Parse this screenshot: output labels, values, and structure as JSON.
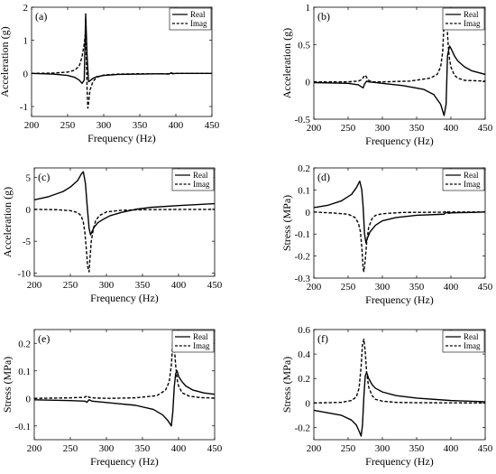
{
  "figure": {
    "legend_real": "Real",
    "legend_imag": "Imag"
  },
  "chart_data": [
    {
      "type": "line",
      "panel_label": "(a)",
      "xlabel": "Frequency (Hz)",
      "ylabel": "Acceleration (g)",
      "xlim": [
        200,
        450
      ],
      "ylim": [
        -1.3,
        2
      ],
      "xticks": [
        200,
        250,
        300,
        350,
        400,
        450
      ],
      "yticks": [
        -1,
        0,
        1,
        2
      ],
      "legend_position": "top-right",
      "series": [
        {
          "name": "Real",
          "style": "solid",
          "x": [
            200,
            230,
            250,
            260,
            266,
            270,
            273,
            275,
            277,
            279,
            281,
            285,
            290,
            300,
            320,
            350,
            380,
            390,
            393,
            396,
            400,
            430,
            450
          ],
          "y": [
            0,
            -0.02,
            -0.06,
            -0.12,
            -0.2,
            -0.3,
            -0.2,
            1.8,
            0.5,
            -0.25,
            -0.22,
            -0.15,
            -0.1,
            -0.06,
            -0.03,
            -0.02,
            -0.01,
            -0.02,
            0.01,
            -0.01,
            0,
            0,
            0
          ]
        },
        {
          "name": "Imag",
          "style": "dashed",
          "x": [
            200,
            230,
            250,
            260,
            266,
            270,
            273,
            275,
            276,
            277,
            278,
            279,
            281,
            285,
            290,
            300,
            320,
            350,
            390,
            393,
            396,
            400,
            430,
            450
          ],
          "y": [
            0,
            0.01,
            0.04,
            0.1,
            0.22,
            0.5,
            0.9,
            1.25,
            0.4,
            -0.5,
            -1.05,
            -0.9,
            -0.5,
            -0.25,
            -0.12,
            -0.05,
            -0.02,
            -0.01,
            -0.01,
            0.02,
            0,
            0,
            0,
            0
          ]
        }
      ]
    },
    {
      "type": "line",
      "panel_label": "(b)",
      "xlabel": "Frequency (Hz)",
      "ylabel": "Acceleration (g)",
      "xlim": [
        200,
        450
      ],
      "ylim": [
        -0.5,
        1
      ],
      "xticks": [
        200,
        250,
        300,
        350,
        400,
        450
      ],
      "yticks": [
        -0.5,
        0,
        0.5,
        1
      ],
      "legend_position": "top-right",
      "series": [
        {
          "name": "Real",
          "style": "solid",
          "x": [
            200,
            250,
            265,
            270,
            272,
            274,
            277,
            280,
            290,
            300,
            330,
            360,
            375,
            385,
            390,
            393,
            395,
            398,
            400,
            405,
            410,
            420,
            430,
            450
          ],
          "y": [
            -0.01,
            -0.02,
            -0.04,
            -0.07,
            -0.08,
            -0.03,
            0.01,
            0,
            -0.01,
            -0.02,
            -0.05,
            -0.1,
            -0.17,
            -0.3,
            -0.45,
            -0.3,
            0.35,
            0.48,
            0.45,
            0.35,
            0.28,
            0.2,
            0.15,
            0.1
          ]
        },
        {
          "name": "Imag",
          "style": "dashed",
          "x": [
            200,
            250,
            265,
            270,
            273,
            275,
            277,
            280,
            285,
            300,
            340,
            370,
            380,
            385,
            388,
            390,
            392,
            394,
            396,
            398,
            400,
            405,
            410,
            420,
            450
          ],
          "y": [
            0,
            0,
            0.01,
            0.03,
            0.07,
            0.09,
            0.06,
            0.02,
            0,
            0,
            0.01,
            0.05,
            0.1,
            0.2,
            0.4,
            0.8,
            0.9,
            0.8,
            0.5,
            0.3,
            0.2,
            0.09,
            0.05,
            0.02,
            0.01
          ]
        }
      ]
    },
    {
      "type": "line",
      "panel_label": "(c)",
      "xlabel": "Frequency (Hz)",
      "ylabel": "Acceleration (g)",
      "xlim": [
        200,
        450
      ],
      "ylim": [
        -10.5,
        6.5
      ],
      "xticks": [
        200,
        250,
        300,
        350,
        400,
        450
      ],
      "yticks": [
        -10,
        -5,
        0,
        5
      ],
      "legend_position": "top-right",
      "series": [
        {
          "name": "Real",
          "style": "solid",
          "x": [
            200,
            220,
            240,
            250,
            260,
            265,
            268,
            271,
            273,
            276,
            278,
            280,
            283,
            288,
            295,
            305,
            320,
            340,
            360,
            400,
            450
          ],
          "y": [
            1.5,
            2,
            2.8,
            3.5,
            4.5,
            5.5,
            5.9,
            4,
            1,
            -3,
            -4,
            -3.5,
            -2.8,
            -2.1,
            -1.6,
            -1,
            -0.5,
            0,
            0.3,
            0.6,
            0.9
          ]
        },
        {
          "name": "Imag",
          "style": "dashed",
          "x": [
            200,
            230,
            250,
            260,
            265,
            268,
            270,
            272,
            274,
            276,
            277,
            279,
            282,
            285,
            290,
            300,
            320,
            350,
            400,
            450
          ],
          "y": [
            0,
            -0.05,
            -0.2,
            -0.5,
            -1,
            -2,
            -3.5,
            -6,
            -9,
            -9.8,
            -8,
            -5,
            -3,
            -1.8,
            -1,
            -0.4,
            -0.15,
            -0.05,
            -0.01,
            0
          ]
        }
      ]
    },
    {
      "type": "line",
      "panel_label": "(d)",
      "xlabel": "Frequency (Hz)",
      "ylabel": "Stress (MPa)",
      "xlim": [
        200,
        450
      ],
      "ylim": [
        -0.3,
        0.2
      ],
      "xticks": [
        200,
        250,
        300,
        350,
        400,
        450
      ],
      "yticks": [
        -0.3,
        -0.2,
        -0.1,
        0,
        0.1,
        0.2
      ],
      "legend_position": "top-right",
      "series": [
        {
          "name": "Real",
          "style": "solid",
          "x": [
            200,
            220,
            240,
            255,
            262,
            267,
            270,
            272,
            274,
            276,
            278,
            282,
            290,
            300,
            320,
            350,
            390,
            393,
            397,
            400,
            430,
            450
          ],
          "y": [
            0.02,
            0.03,
            0.05,
            0.08,
            0.11,
            0.14,
            0.1,
            0.02,
            -0.1,
            -0.14,
            -0.12,
            -0.09,
            -0.06,
            -0.04,
            -0.025,
            -0.015,
            -0.01,
            -0.002,
            -0.006,
            -0.004,
            -0.002,
            0
          ]
        },
        {
          "name": "Imag",
          "style": "dashed",
          "x": [
            200,
            230,
            250,
            260,
            265,
            268,
            270,
            272,
            273,
            275,
            277,
            280,
            285,
            290,
            300,
            330,
            390,
            393,
            397,
            400,
            450
          ],
          "y": [
            0,
            -0.005,
            -0.01,
            -0.025,
            -0.05,
            -0.09,
            -0.16,
            -0.26,
            -0.27,
            -0.22,
            -0.14,
            -0.07,
            -0.03,
            -0.015,
            -0.008,
            -0.002,
            -0.001,
            0.004,
            0,
            0,
            0
          ]
        }
      ]
    },
    {
      "type": "line",
      "panel_label": "(e)",
      "xlabel": "Frequency (Hz)",
      "ylabel": "Stress (MPa)",
      "xlim": [
        200,
        450
      ],
      "ylim": [
        -0.15,
        0.25
      ],
      "xticks": [
        200,
        250,
        300,
        350,
        400,
        450
      ],
      "yticks": [
        -0.1,
        0,
        0.1,
        0.2
      ],
      "legend_position": "top-right",
      "series": [
        {
          "name": "Real",
          "style": "solid",
          "x": [
            200,
            250,
            270,
            273,
            276,
            280,
            300,
            340,
            365,
            378,
            385,
            390,
            392,
            394,
            396,
            398,
            400,
            405,
            410,
            420,
            435,
            450
          ],
          "y": [
            -0.005,
            -0.008,
            -0.01,
            -0.014,
            -0.005,
            -0.01,
            -0.015,
            -0.025,
            -0.04,
            -0.06,
            -0.08,
            -0.1,
            -0.05,
            0.04,
            0.09,
            0.1,
            0.08,
            0.06,
            0.045,
            0.03,
            0.02,
            0.015
          ]
        },
        {
          "name": "Imag",
          "style": "dashed",
          "x": [
            200,
            250,
            270,
            273,
            276,
            280,
            300,
            340,
            370,
            382,
            387,
            390,
            392,
            394,
            396,
            398,
            400,
            405,
            415,
            430,
            450
          ],
          "y": [
            0,
            0.002,
            0.004,
            0.01,
            0.004,
            0.002,
            0,
            0.002,
            0.01,
            0.03,
            0.06,
            0.12,
            0.2,
            0.19,
            0.12,
            0.07,
            0.045,
            0.02,
            0.008,
            0.003,
            0.001
          ]
        }
      ]
    },
    {
      "type": "line",
      "panel_label": "(f)",
      "xlabel": "Frequency (Hz)",
      "ylabel": "Stress (MPa)",
      "xlim": [
        200,
        450
      ],
      "ylim": [
        -0.3,
        0.6
      ],
      "xticks": [
        200,
        250,
        300,
        350,
        400,
        450
      ],
      "yticks": [
        -0.2,
        0,
        0.2,
        0.4,
        0.6
      ],
      "legend_position": "top-right",
      "series": [
        {
          "name": "Real",
          "style": "solid",
          "x": [
            200,
            220,
            240,
            255,
            262,
            266,
            269,
            271,
            273,
            275,
            277,
            280,
            285,
            290,
            300,
            320,
            350,
            400,
            450
          ],
          "y": [
            -0.06,
            -0.08,
            -0.1,
            -0.14,
            -0.18,
            -0.23,
            -0.27,
            -0.18,
            0.05,
            0.22,
            0.25,
            0.2,
            0.15,
            0.12,
            0.09,
            0.06,
            0.04,
            0.02,
            0.01
          ]
        },
        {
          "name": "Imag",
          "style": "dashed",
          "x": [
            200,
            240,
            255,
            262,
            266,
            269,
            271,
            273,
            275,
            277,
            280,
            285,
            290,
            300,
            320,
            350,
            450
          ],
          "y": [
            0,
            0.005,
            0.02,
            0.05,
            0.12,
            0.3,
            0.48,
            0.52,
            0.42,
            0.25,
            0.13,
            0.06,
            0.03,
            0.015,
            0.005,
            0.002,
            0
          ]
        }
      ]
    }
  ]
}
